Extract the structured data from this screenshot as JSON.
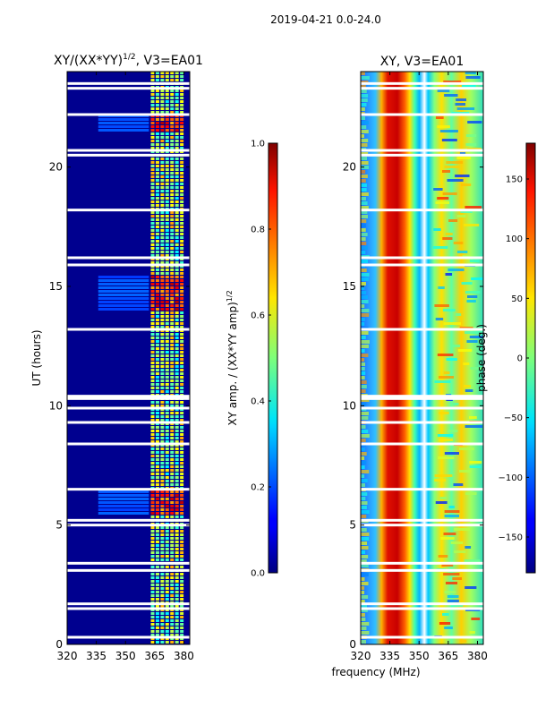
{
  "suptitle": "2019-04-21 0.0-24.0",
  "chart_data": [
    {
      "type": "heatmap",
      "title": "XY/(XX*YY)",
      "title_superscript": "1/2",
      "title_suffix": ", V3=EA01",
      "xlabel": "",
      "ylabel": "UT (hours)",
      "xlim": [
        320,
        383
      ],
      "ylim": [
        0,
        24
      ],
      "xticks": [
        "320",
        "335",
        "350",
        "365",
        "380"
      ],
      "yticks": [
        "0",
        "5",
        "10",
        "15",
        "20"
      ],
      "colorbar": {
        "label": "XY amp. / (XX*YY amp)",
        "label_superscript": "1/2",
        "range": [
          0.0,
          1.0
        ],
        "ticks": [
          "0.0",
          "0.2",
          "0.4",
          "0.6",
          "0.8",
          "1.0"
        ],
        "colormap": "jet"
      },
      "blank_rows_ut": [
        0.3,
        1.5,
        1.7,
        3.1,
        3.4,
        5.0,
        5.2,
        6.5,
        8.4,
        9.3,
        9.9,
        10.3,
        10.4,
        13.2,
        15.9,
        16.2,
        18.2,
        20.5,
        20.7,
        22.2,
        23.3,
        23.5
      ]
    },
    {
      "type": "heatmap",
      "title": "XY, V3=EA01",
      "xlabel": "frequency (MHz)",
      "ylabel": "",
      "xlim": [
        320,
        383
      ],
      "ylim": [
        0,
        24
      ],
      "xticks": [
        "320",
        "335",
        "350",
        "365",
        "380"
      ],
      "yticks": [
        "0",
        "5",
        "10",
        "15",
        "20"
      ],
      "colorbar": {
        "label": "phase (deg.)",
        "range": [
          -180,
          180
        ],
        "ticks": [
          "−150",
          "−100",
          "−50",
          "0",
          "50",
          "100",
          "150"
        ],
        "tick_values": [
          -150,
          -100,
          -50,
          0,
          50,
          100,
          150
        ],
        "colormap": "jet"
      },
      "blank_rows_ut": [
        0.3,
        1.5,
        1.7,
        3.1,
        3.4,
        5.0,
        5.2,
        6.5,
        8.4,
        9.3,
        9.9,
        10.3,
        10.4,
        13.2,
        15.9,
        16.2,
        18.2,
        20.5,
        20.7,
        22.2,
        23.3,
        23.5
      ]
    }
  ]
}
